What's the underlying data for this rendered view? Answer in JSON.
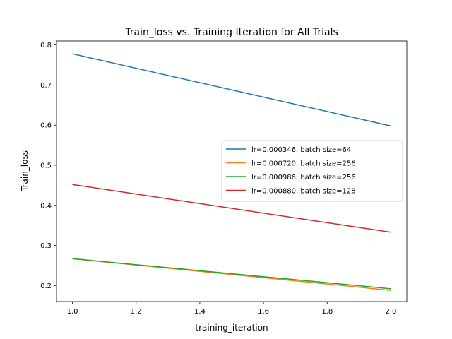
{
  "chart_data": {
    "type": "line",
    "title": "Train_loss vs. Training Iteration for All Trials",
    "xlabel": "training_iteration",
    "ylabel": "Train_loss",
    "xlim": [
      0.95,
      2.05
    ],
    "ylim": [
      0.16,
      0.81
    ],
    "xticks": [
      1.0,
      1.2,
      1.4,
      1.6,
      1.8,
      2.0
    ],
    "xtick_labels": [
      "1.0",
      "1.2",
      "1.4",
      "1.6",
      "1.8",
      "2.0"
    ],
    "yticks": [
      0.2,
      0.3,
      0.4,
      0.5,
      0.6,
      0.7,
      0.8
    ],
    "ytick_labels": [
      "0.2",
      "0.3",
      "0.4",
      "0.5",
      "0.6",
      "0.7",
      "0.8"
    ],
    "grid": false,
    "legend_position": "center-right",
    "x": [
      1.0,
      2.0
    ],
    "series": [
      {
        "name": "lr=0.000346, batch size=64",
        "color": "#1f77b4",
        "values": [
          0.778,
          0.598
        ]
      },
      {
        "name": "lr=0.000720, batch size=256",
        "color": "#ff7f0e",
        "values": [
          0.267,
          0.188
        ]
      },
      {
        "name": "lr=0.000986, batch size=256",
        "color": "#2ca02c",
        "values": [
          0.267,
          0.192
        ]
      },
      {
        "name": "lr=0.000880, batch size=128",
        "color": "#d62728",
        "values": [
          0.452,
          0.333
        ]
      }
    ]
  }
}
